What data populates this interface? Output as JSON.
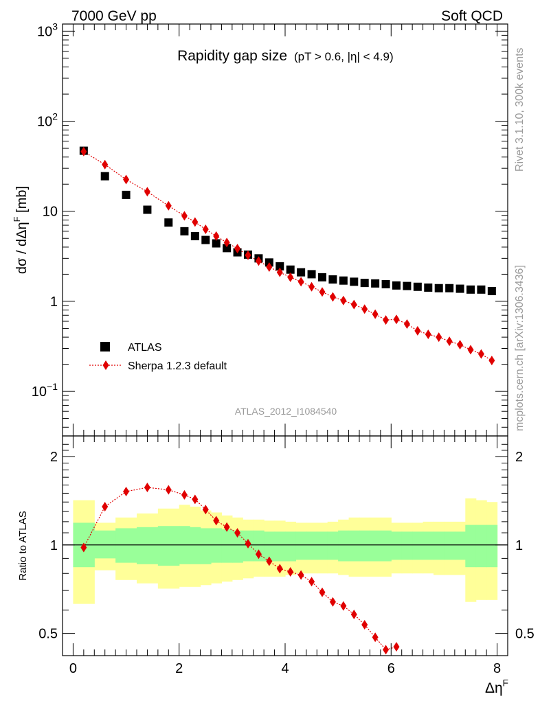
{
  "header": {
    "left": "7000 GeV pp",
    "right": "Soft QCD"
  },
  "side_labels": {
    "rivet": "Rivet 3.1.10,  300k events",
    "mcplots": "mcplots.cern.ch [arXiv:1306.3436]"
  },
  "chart_data": [
    {
      "type": "scatter",
      "title": "Rapidity gap size",
      "subtitle": "(pT > 0.6, |η| < 4.9)",
      "ylabel": "dσ / dΔη^F [mb]",
      "xlabel": "Δη^F",
      "yscale": "log",
      "xlim": [
        -0.2,
        8.2
      ],
      "ylim": [
        0.032,
        1200
      ],
      "x_ticks": [
        "0",
        "2",
        "4",
        "6",
        "8"
      ],
      "y_ticks": [
        {
          "value": 0.1,
          "label": "10^-1"
        },
        {
          "value": 1,
          "label": "1"
        },
        {
          "value": 10,
          "label": "10"
        },
        {
          "value": 100,
          "label": "10^2"
        },
        {
          "value": 1000,
          "label": "10^3"
        }
      ],
      "watermark": "ATLAS_2012_I1084540",
      "legend": {
        "position": "bottom-left",
        "entries": [
          "ATLAS",
          "Sherpa 1.2.3 default"
        ]
      },
      "series": [
        {
          "name": "ATLAS",
          "marker": "square",
          "color": "#000000",
          "x": [
            0.2,
            0.6,
            1.0,
            1.4,
            1.8,
            2.1,
            2.3,
            2.5,
            2.7,
            2.9,
            3.1,
            3.3,
            3.5,
            3.7,
            3.9,
            4.1,
            4.3,
            4.5,
            4.7,
            4.9,
            5.1,
            5.3,
            5.5,
            5.7,
            5.9,
            6.1,
            6.3,
            6.5,
            6.7,
            6.9,
            7.1,
            7.3,
            7.5,
            7.7,
            7.9
          ],
          "values": [
            47,
            24.5,
            15.2,
            10.4,
            7.5,
            6.0,
            5.3,
            4.8,
            4.4,
            3.9,
            3.5,
            3.3,
            3.0,
            2.7,
            2.45,
            2.25,
            2.1,
            2.0,
            1.85,
            1.75,
            1.7,
            1.65,
            1.6,
            1.58,
            1.55,
            1.5,
            1.48,
            1.45,
            1.42,
            1.4,
            1.4,
            1.38,
            1.35,
            1.35,
            1.3
          ]
        },
        {
          "name": "Sherpa 1.2.3 default",
          "marker": "diamond",
          "line": "dotted",
          "color": "#e00000",
          "x": [
            0.2,
            0.6,
            1.0,
            1.4,
            1.8,
            2.1,
            2.3,
            2.5,
            2.7,
            2.9,
            3.1,
            3.3,
            3.5,
            3.7,
            3.9,
            4.1,
            4.3,
            4.5,
            4.7,
            4.9,
            5.1,
            5.3,
            5.5,
            5.7,
            5.9,
            6.1,
            6.3,
            6.5,
            6.7,
            6.9,
            7.1,
            7.3,
            7.5,
            7.7,
            7.9
          ],
          "values": [
            46,
            33,
            22.5,
            16.5,
            11.5,
            8.9,
            7.6,
            6.3,
            5.3,
            4.5,
            3.85,
            3.25,
            2.8,
            2.4,
            2.1,
            1.85,
            1.65,
            1.45,
            1.27,
            1.12,
            1.02,
            0.92,
            0.82,
            0.72,
            0.62,
            0.63,
            0.56,
            0.47,
            0.43,
            0.4,
            0.36,
            0.33,
            0.29,
            0.26,
            0.22
          ]
        }
      ]
    },
    {
      "type": "line",
      "ylabel": "Ratio to ATLAS",
      "xlabel": "Δη^F",
      "yscale": "log",
      "xlim": [
        -0.2,
        8.2
      ],
      "ylim": [
        0.42,
        2.35
      ],
      "y_ticks": [
        {
          "value": 0.5,
          "label": "0.5"
        },
        {
          "value": 1,
          "label": "1"
        },
        {
          "value": 2,
          "label": "2"
        }
      ],
      "bin_edges": [
        0,
        0.4,
        0.8,
        1.2,
        1.6,
        2.0,
        2.2,
        2.4,
        2.6,
        2.8,
        3.0,
        3.2,
        3.4,
        3.6,
        3.8,
        4.0,
        4.2,
        4.4,
        4.6,
        4.8,
        5.0,
        5.2,
        5.4,
        5.6,
        5.8,
        6.0,
        6.2,
        6.4,
        6.6,
        6.8,
        7.0,
        7.2,
        7.4,
        7.6,
        7.8,
        8.0
      ],
      "bands": [
        {
          "name": "stat uncertainty",
          "color": "#99ff99",
          "low": [
            0.84,
            0.9,
            0.87,
            0.86,
            0.85,
            0.86,
            0.86,
            0.86,
            0.87,
            0.87,
            0.87,
            0.88,
            0.88,
            0.88,
            0.88,
            0.88,
            0.89,
            0.89,
            0.89,
            0.89,
            0.88,
            0.88,
            0.88,
            0.88,
            0.88,
            0.89,
            0.89,
            0.89,
            0.89,
            0.89,
            0.89,
            0.89,
            0.84,
            0.84,
            0.84
          ],
          "high": [
            1.19,
            1.12,
            1.14,
            1.15,
            1.16,
            1.16,
            1.15,
            1.14,
            1.14,
            1.13,
            1.12,
            1.12,
            1.12,
            1.11,
            1.11,
            1.11,
            1.11,
            1.11,
            1.11,
            1.11,
            1.12,
            1.12,
            1.12,
            1.12,
            1.12,
            1.11,
            1.11,
            1.11,
            1.11,
            1.11,
            1.11,
            1.11,
            1.17,
            1.17,
            1.17
          ]
        },
        {
          "name": "total uncertainty",
          "color": "#ffff99",
          "low": [
            0.63,
            0.82,
            0.76,
            0.74,
            0.71,
            0.72,
            0.72,
            0.73,
            0.74,
            0.75,
            0.76,
            0.77,
            0.78,
            0.78,
            0.78,
            0.79,
            0.8,
            0.8,
            0.8,
            0.8,
            0.79,
            0.78,
            0.78,
            0.78,
            0.78,
            0.8,
            0.8,
            0.8,
            0.8,
            0.79,
            0.79,
            0.79,
            0.64,
            0.65,
            0.65
          ],
          "high": [
            1.42,
            1.19,
            1.24,
            1.28,
            1.33,
            1.37,
            1.35,
            1.31,
            1.29,
            1.26,
            1.24,
            1.22,
            1.22,
            1.21,
            1.21,
            1.2,
            1.19,
            1.19,
            1.19,
            1.2,
            1.22,
            1.24,
            1.24,
            1.24,
            1.24,
            1.19,
            1.19,
            1.19,
            1.2,
            1.2,
            1.2,
            1.2,
            1.44,
            1.42,
            1.4
          ]
        }
      ],
      "series": [
        {
          "name": "Sherpa 1.2.3 default / ATLAS",
          "marker": "diamond",
          "line": "dotted",
          "color": "#e00000",
          "x": [
            0.2,
            0.6,
            1.0,
            1.4,
            1.8,
            2.1,
            2.3,
            2.5,
            2.7,
            2.9,
            3.1,
            3.3,
            3.5,
            3.7,
            3.9,
            4.1,
            4.3,
            4.5,
            4.7,
            4.9,
            5.1,
            5.3,
            5.5,
            5.7,
            5.9,
            6.1
          ],
          "values": [
            0.98,
            1.35,
            1.52,
            1.57,
            1.54,
            1.48,
            1.43,
            1.32,
            1.21,
            1.15,
            1.1,
            1.01,
            0.93,
            0.88,
            0.83,
            0.81,
            0.79,
            0.75,
            0.69,
            0.64,
            0.62,
            0.58,
            0.535,
            0.485,
            0.44,
            0.45
          ]
        }
      ]
    }
  ]
}
